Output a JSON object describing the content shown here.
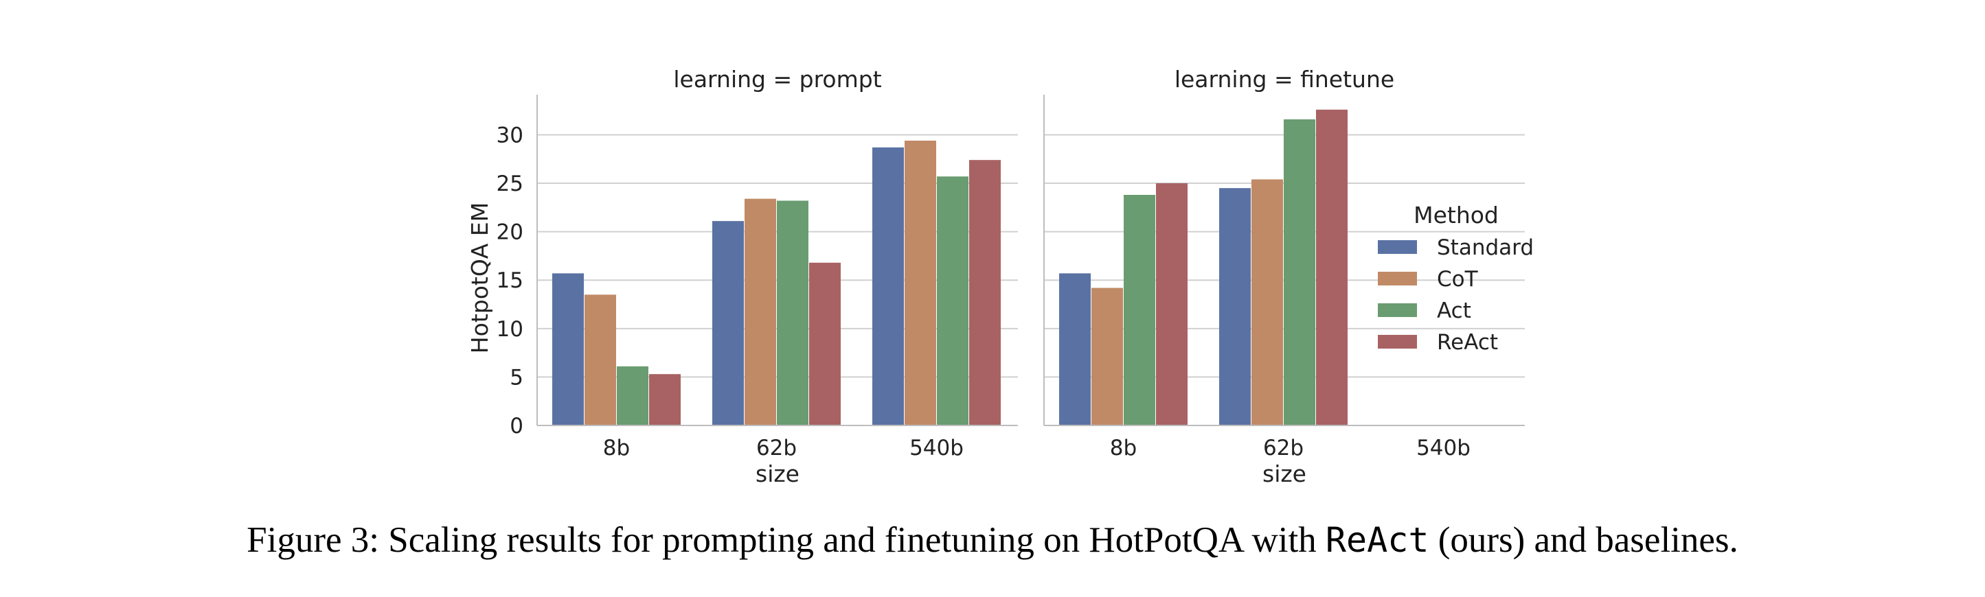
{
  "chart_data": {
    "type": "bar",
    "ylabel": "HotpotQA EM",
    "ylim": [
      0,
      34
    ],
    "yticks": [
      "0",
      "5",
      "10",
      "15",
      "20",
      "25",
      "30"
    ],
    "categories": [
      "8b",
      "62b",
      "540b"
    ],
    "xlabel": "size",
    "grid": "y",
    "legend": {
      "title": "Method",
      "placement": "right",
      "labels": [
        "Standard",
        "CoT",
        "Act",
        "ReAct"
      ]
    },
    "colors": [
      "#5a72a3",
      "#c08a66",
      "#699c70",
      "#a86263"
    ],
    "facets": [
      {
        "title": "learning = prompt",
        "series": [
          {
            "name": "Standard",
            "values": [
              15.7,
              21.1,
              28.7
            ]
          },
          {
            "name": "CoT",
            "values": [
              13.5,
              23.4,
              29.4
            ]
          },
          {
            "name": "Act",
            "values": [
              6.1,
              23.2,
              25.7
            ]
          },
          {
            "name": "ReAct",
            "values": [
              5.3,
              16.8,
              27.4
            ]
          }
        ]
      },
      {
        "title": "learning = finetune",
        "series": [
          {
            "name": "Standard",
            "values": [
              15.7,
              24.5,
              null
            ]
          },
          {
            "name": "CoT",
            "values": [
              14.2,
              25.4,
              null
            ]
          },
          {
            "name": "Act",
            "values": [
              23.8,
              31.6,
              null
            ]
          },
          {
            "name": "ReAct",
            "values": [
              25.0,
              32.6,
              null
            ]
          }
        ]
      }
    ]
  },
  "caption": {
    "prefix": "Figure 3: Scaling results for prompting and finetuning on HotPotQA with ",
    "code": "ReAct",
    "suffix": " (ours) and baselines."
  }
}
